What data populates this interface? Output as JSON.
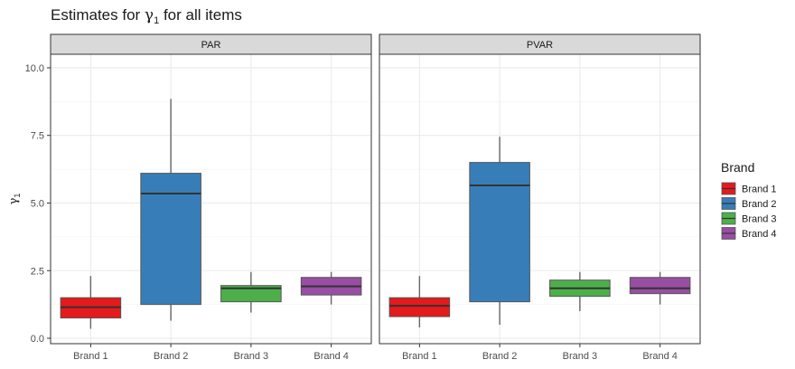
{
  "chart_data": {
    "type": "boxplot",
    "title": "Estimates for γ₁ for all items",
    "title_prefix": "Estimates for ",
    "title_symbol": "γ",
    "title_subscript": "1",
    "title_suffix": " for all items",
    "ylabel_symbol": "γ",
    "ylabel_subscript": "1",
    "xlabel": "",
    "ylim": [
      -0.2,
      10.5
    ],
    "yticks": [
      0.0,
      2.5,
      5.0,
      7.5,
      10.0
    ],
    "ytick_labels": [
      "0.0",
      "2.5",
      "5.0",
      "7.5",
      "10.0"
    ],
    "categories": [
      "Brand 1",
      "Brand 2",
      "Brand 3",
      "Brand 4"
    ],
    "grid": true,
    "legend": {
      "title": "Brand",
      "placement": "right",
      "entries": [
        "Brand 1",
        "Brand 2",
        "Brand 3",
        "Brand 4"
      ]
    },
    "colors": [
      "#E41A1C",
      "#377EB8",
      "#4DAF4A",
      "#984EA3"
    ],
    "panels": [
      {
        "strip": "PAR",
        "boxes": [
          {
            "category": "Brand 1",
            "min": 0.35,
            "q1": 0.75,
            "median": 1.15,
            "q3": 1.5,
            "max": 2.3
          },
          {
            "category": "Brand 2",
            "min": 0.65,
            "q1": 1.25,
            "median": 5.35,
            "q3": 6.1,
            "max": 8.85
          },
          {
            "category": "Brand 3",
            "min": 0.95,
            "q1": 1.35,
            "median": 1.85,
            "q3": 1.95,
            "max": 2.45
          },
          {
            "category": "Brand 4",
            "min": 1.25,
            "q1": 1.6,
            "median": 1.92,
            "q3": 2.25,
            "max": 2.45
          }
        ]
      },
      {
        "strip": "PVAR",
        "boxes": [
          {
            "category": "Brand 1",
            "min": 0.4,
            "q1": 0.8,
            "median": 1.2,
            "q3": 1.5,
            "max": 2.3
          },
          {
            "category": "Brand 2",
            "min": 0.5,
            "q1": 1.35,
            "median": 5.65,
            "q3": 6.5,
            "max": 7.45
          },
          {
            "category": "Brand 3",
            "min": 1.0,
            "q1": 1.55,
            "median": 1.85,
            "q3": 2.15,
            "max": 2.45
          },
          {
            "category": "Brand 4",
            "min": 1.25,
            "q1": 1.65,
            "median": 1.85,
            "q3": 2.25,
            "max": 2.45
          }
        ]
      }
    ]
  }
}
